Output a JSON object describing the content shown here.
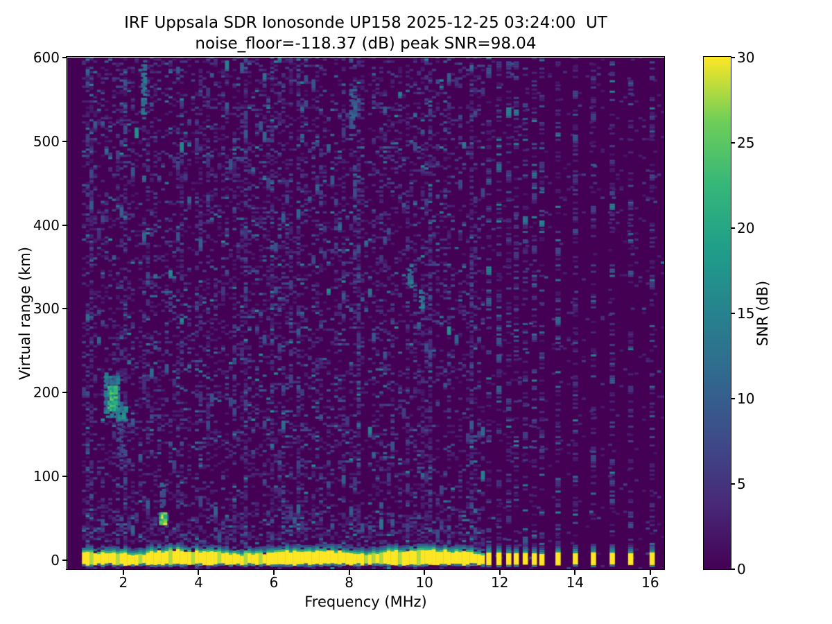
{
  "title": {
    "line1": "IRF Uppsala SDR Ionosonde UP158 2025-12-25 03:24:00  UT",
    "line2": "noise_floor=-118.37 (dB) peak SNR=98.04"
  },
  "chart_data": {
    "type": "heatmap",
    "xlabel": "Frequency (MHz)",
    "ylabel": "Virtual range (km)",
    "xlim": [
      0.51,
      16.37
    ],
    "ylim": [
      -11,
      600
    ],
    "xticks": [
      2,
      4,
      6,
      8,
      10,
      12,
      14,
      16
    ],
    "yticks": [
      0,
      100,
      200,
      300,
      400,
      500,
      600
    ],
    "grid": false,
    "colorbar": {
      "label": "SNR (dB)",
      "vmin": 0,
      "vmax": 30,
      "ticks": [
        0,
        5,
        10,
        15,
        20,
        25,
        30
      ],
      "colormap": "viridis",
      "stops": [
        [
          0.0,
          "#440154"
        ],
        [
          0.125,
          "#482878"
        ],
        [
          0.25,
          "#3e4a89"
        ],
        [
          0.375,
          "#31688e"
        ],
        [
          0.5,
          "#26828e"
        ],
        [
          0.625,
          "#1f9e89"
        ],
        [
          0.75,
          "#35b779"
        ],
        [
          0.875,
          "#6ece58"
        ],
        [
          1.0,
          "#fde725"
        ]
      ]
    },
    "sweep": {
      "f_start": 0.9,
      "f_end": 11.58,
      "bin_mhz": 0.1,
      "range_bin_km": 2.5
    },
    "ground_band": {
      "f_range": [
        0.9,
        11.58
      ],
      "h_top_km": 9.5,
      "h_bottom_km": -5.5,
      "snr": 30,
      "fringe_rows_db": [
        21,
        14,
        8
      ],
      "underline_h": [
        -8.5,
        -6.0
      ],
      "underline_db": 12
    },
    "discrete_bars": {
      "freqs": [
        11.71,
        11.98,
        12.24,
        12.44,
        12.68,
        12.92,
        13.12,
        13.55,
        14.01,
        14.49,
        14.99,
        15.48,
        16.05
      ],
      "half_width_mhz": 0.07,
      "h_range": [
        -5.5,
        7.5
      ],
      "cap_top_km": 15,
      "snr": 30,
      "stripe_density": 0.3
    },
    "echo_features": [
      {
        "f0": 1.48,
        "f1": 1.85,
        "h0": 170,
        "h1": 218,
        "snr": 13,
        "density": 0.55
      },
      {
        "f0": 1.58,
        "f1": 1.78,
        "h0": 178,
        "h1": 207,
        "snr": 21,
        "density": 0.85
      },
      {
        "f0": 1.8,
        "f1": 2.03,
        "h0": 166,
        "h1": 182,
        "snr": 15,
        "density": 0.8
      },
      {
        "f0": 1.84,
        "f1": 2.0,
        "h0": 118,
        "h1": 168,
        "snr": 7,
        "density": 0.4
      },
      {
        "f0": 2.95,
        "f1": 3.08,
        "h0": 42,
        "h1": 57,
        "snr": 25,
        "density": 0.9
      },
      {
        "f0": 2.97,
        "f1": 3.07,
        "h0": 60,
        "h1": 92,
        "snr": 9,
        "density": 0.5
      },
      {
        "f0": 2.47,
        "f1": 2.58,
        "h0": 532,
        "h1": 597,
        "snr": 12,
        "density": 0.6
      },
      {
        "f0": 8.0,
        "f1": 8.12,
        "h0": 515,
        "h1": 562,
        "snr": 10,
        "density": 0.55
      },
      {
        "f0": 9.55,
        "f1": 9.66,
        "h0": 325,
        "h1": 352,
        "snr": 12,
        "density": 0.6
      },
      {
        "f0": 9.85,
        "f1": 9.95,
        "h0": 298,
        "h1": 322,
        "snr": 13,
        "density": 0.6
      }
    ],
    "noise": {
      "seed": 1337,
      "base_density": 0.32,
      "right_sparse_density": 0.035,
      "faint_mean_db": 2.4,
      "floor_db": 1.8,
      "near_band_extra_km": 40,
      "near_band_extra_density": 0.18
    }
  }
}
